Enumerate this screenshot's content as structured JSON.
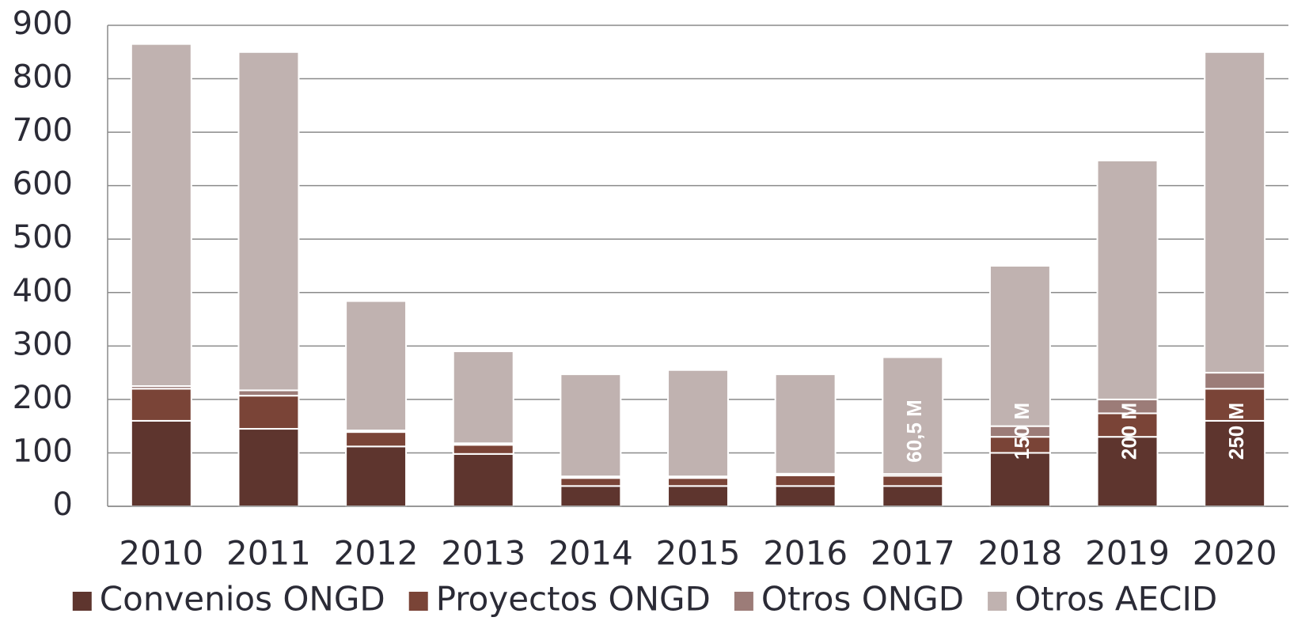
{
  "chart_data": {
    "type": "stacked_bar",
    "categories": [
      "2010",
      "2011",
      "2012",
      "2013",
      "2014",
      "2015",
      "2016",
      "2017",
      "2018",
      "2019",
      "2020"
    ],
    "series": [
      {
        "name": "Convenios ONGD",
        "color": "#5e352e",
        "values": [
          160,
          145,
          112,
          98,
          38,
          38,
          38,
          38,
          100,
          130,
          160
        ]
      },
      {
        "name": "Proyectos ONGD",
        "color": "#7a4437",
        "values": [
          60,
          62,
          27,
          17,
          15,
          15,
          20,
          19,
          30,
          44,
          60
        ]
      },
      {
        "name": "Otros ONGD",
        "color": "#9c7c78",
        "values": [
          5,
          10,
          3,
          3,
          3,
          3,
          3,
          3.5,
          20,
          26,
          30
        ]
      },
      {
        "name": "Otros AECID",
        "color": "#c0b2b0",
        "values": [
          640,
          633,
          242,
          172,
          191,
          199,
          186,
          218.5,
          300,
          447,
          600
        ]
      }
    ],
    "ylim": [
      0,
      900
    ],
    "yticks": [
      0,
      100,
      200,
      300,
      400,
      500,
      600,
      700,
      800,
      900
    ],
    "grid": true,
    "annotations": [
      {
        "text": "60,5 M",
        "category": "2017"
      },
      {
        "text": "150 M",
        "category": "2018"
      },
      {
        "text": "200 M",
        "category": "2019"
      },
      {
        "text": "250 M",
        "category": "2020"
      }
    ],
    "legend": "bottom"
  }
}
